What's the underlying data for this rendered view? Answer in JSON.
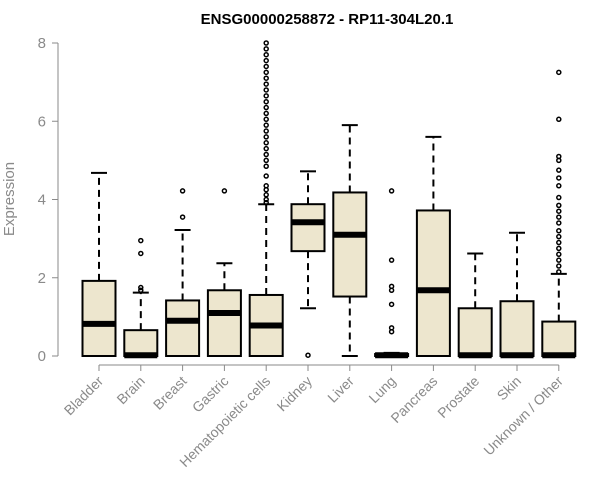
{
  "chart_data": {
    "type": "boxplot",
    "title": "ENSG00000258872 - RP11-304L20.1",
    "xlabel": "",
    "ylabel": "Expression",
    "ylim": [
      0,
      8
    ],
    "yticks": [
      0,
      2,
      4,
      6,
      8
    ],
    "box_fill": "#ede6ce",
    "categories": [
      "Bladder",
      "Brain",
      "Breast",
      "Gastric",
      "Hematopoietic cells",
      "Kidney",
      "Liver",
      "Lung",
      "Pancreas",
      "Prostate",
      "Skin",
      "Unknown / Other"
    ],
    "boxes": [
      {
        "name": "Bladder",
        "whisker_low": 0,
        "q1": 0,
        "median": 0.82,
        "q3": 1.92,
        "whisker_high": 4.68,
        "outliers": []
      },
      {
        "name": "Brain",
        "whisker_low": 0,
        "q1": 0,
        "median": 0.02,
        "q3": 0.66,
        "whisker_high": 1.62,
        "outliers": [
          1.68,
          1.75,
          2.62,
          2.95
        ]
      },
      {
        "name": "Breast",
        "whisker_low": 0,
        "q1": 0,
        "median": 0.9,
        "q3": 1.42,
        "whisker_high": 3.22,
        "outliers": [
          3.55,
          4.22
        ]
      },
      {
        "name": "Gastric",
        "whisker_low": 0,
        "q1": 0,
        "median": 1.1,
        "q3": 1.68,
        "whisker_high": 2.37,
        "outliers": [
          4.22
        ]
      },
      {
        "name": "Hematopoietic cells",
        "whisker_low": 0,
        "q1": 0,
        "median": 0.78,
        "q3": 1.56,
        "whisker_high": 3.88,
        "outliers": [
          3.92,
          4.0,
          4.12,
          4.25,
          4.35,
          4.6,
          4.85,
          5.0,
          5.15,
          5.3,
          5.45,
          5.6,
          5.75,
          5.9,
          6.05,
          6.2,
          6.35,
          6.5,
          6.65,
          6.8,
          6.95,
          7.1,
          7.25,
          7.4,
          7.55,
          7.7,
          7.85,
          8.0
        ]
      },
      {
        "name": "Kidney",
        "whisker_low": 1.22,
        "q1": 2.68,
        "median": 3.42,
        "q3": 3.88,
        "whisker_high": 4.72,
        "outliers": [
          0.02
        ]
      },
      {
        "name": "Liver",
        "whisker_low": 0,
        "q1": 1.52,
        "median": 3.1,
        "q3": 4.18,
        "whisker_high": 5.9,
        "outliers": []
      },
      {
        "name": "Lung",
        "whisker_low": 0,
        "q1": 0,
        "median": 0.02,
        "q3": 0.05,
        "whisker_high": 0.08,
        "outliers": [
          0.62,
          0.72,
          1.32,
          1.68,
          1.78,
          2.45,
          4.22
        ]
      },
      {
        "name": "Pancreas",
        "whisker_low": 0,
        "q1": 0,
        "median": 1.68,
        "q3": 3.72,
        "whisker_high": 5.6,
        "outliers": []
      },
      {
        "name": "Prostate",
        "whisker_low": 0,
        "q1": 0,
        "median": 0.02,
        "q3": 1.22,
        "whisker_high": 2.62,
        "outliers": []
      },
      {
        "name": "Skin",
        "whisker_low": 0,
        "q1": 0,
        "median": 0.02,
        "q3": 1.4,
        "whisker_high": 3.15,
        "outliers": []
      },
      {
        "name": "Unknown / Other",
        "whisker_low": 0,
        "q1": 0,
        "median": 0.02,
        "q3": 0.88,
        "whisker_high": 2.1,
        "outliers": [
          2.15,
          2.3,
          2.45,
          2.6,
          2.75,
          2.9,
          3.05,
          3.2,
          3.4,
          3.55,
          3.7,
          3.85,
          4.05,
          4.35,
          4.55,
          4.75,
          5.0,
          5.1,
          6.05,
          7.25
        ]
      }
    ]
  }
}
